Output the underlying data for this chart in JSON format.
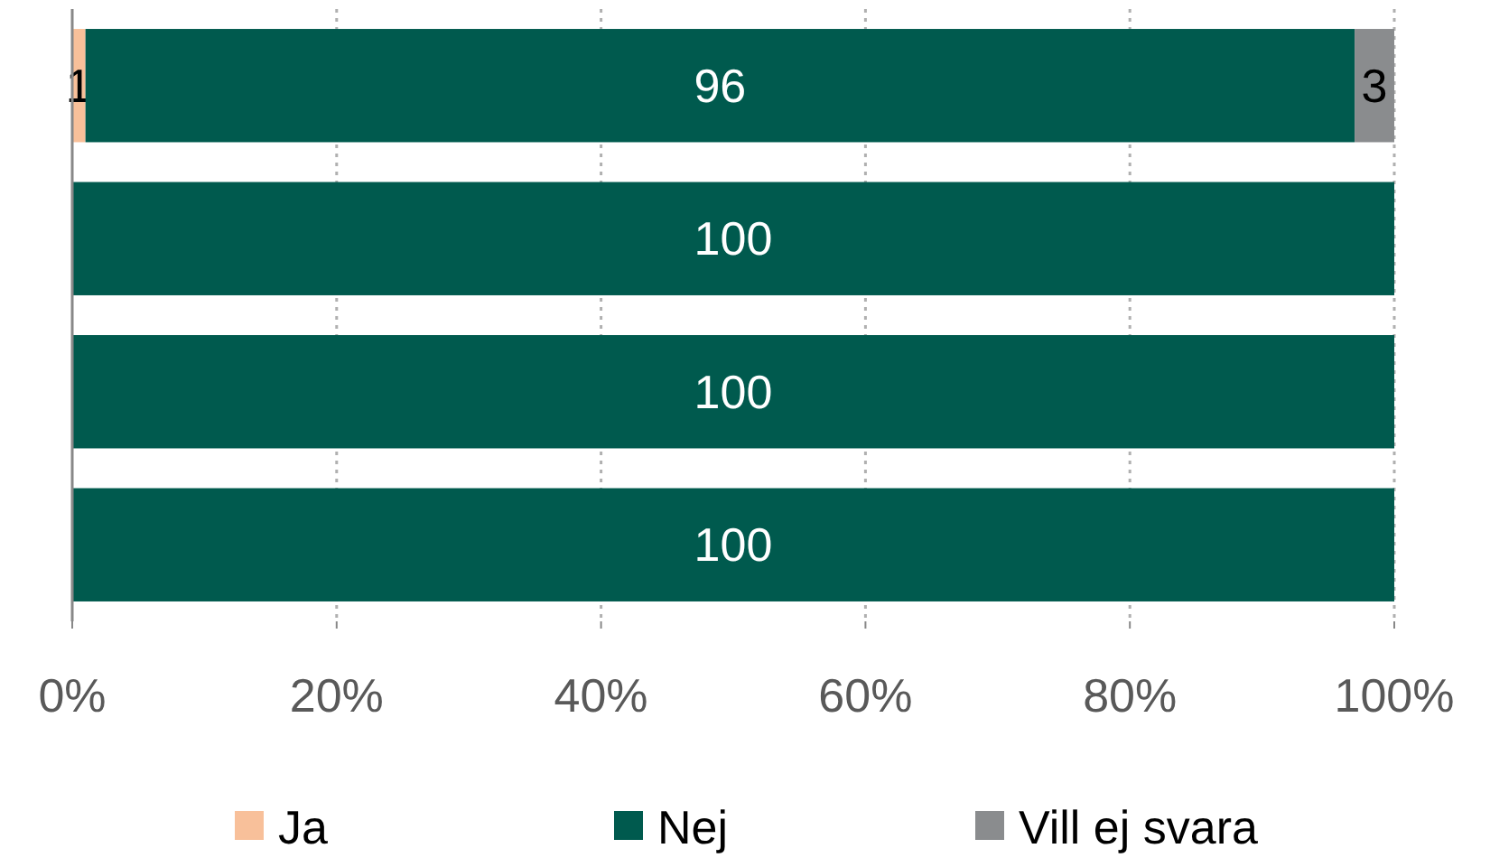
{
  "chart_data": {
    "type": "bar",
    "orientation": "horizontal",
    "stacked": true,
    "categories": [
      null,
      null,
      null,
      null
    ],
    "series": [
      {
        "name": "Ja",
        "color": "#f8c09a",
        "values": [
          1,
          0,
          0,
          0
        ],
        "value_labels": [
          "1",
          null,
          null,
          null
        ]
      },
      {
        "name": "Nej",
        "color": "#005a4e",
        "values": [
          96,
          100,
          100,
          100
        ],
        "value_labels": [
          "96",
          "100",
          "100",
          "100"
        ]
      },
      {
        "name": "Vill ej svara",
        "color": "#8a8c8e",
        "values": [
          3,
          0,
          0,
          0
        ],
        "value_labels": [
          "3",
          null,
          null,
          null
        ]
      }
    ],
    "xlim": [
      0,
      100
    ],
    "xticks": [
      {
        "value": 0,
        "label": "0%"
      },
      {
        "value": 20,
        "label": "20%"
      },
      {
        "value": 40,
        "label": "40%"
      },
      {
        "value": 60,
        "label": "60%"
      },
      {
        "value": 80,
        "label": "80%"
      },
      {
        "value": 100,
        "label": "100%"
      }
    ],
    "grid": "x",
    "legend": "bottom"
  }
}
